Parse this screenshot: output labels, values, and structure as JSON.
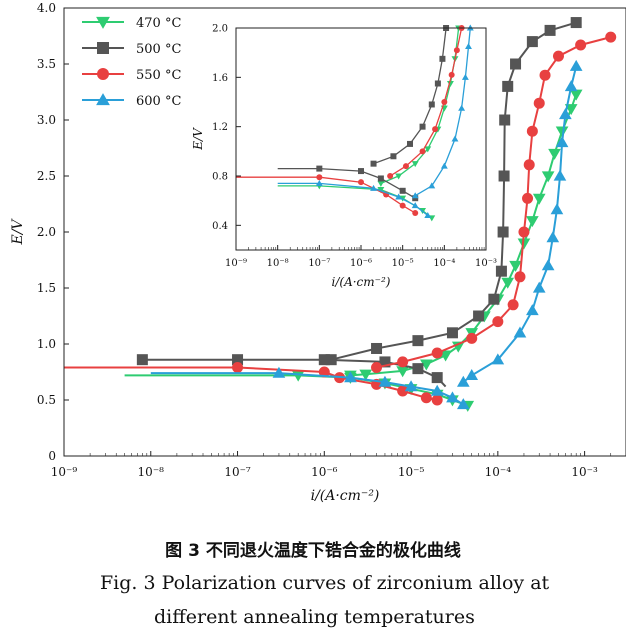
{
  "caption": {
    "cn": "图 3    不同退火温度下锆合金的极化曲线",
    "en_line1": "Fig. 3    Polarization curves of zirconium alloy at",
    "en_line2": "different annealing temperatures"
  },
  "chart_data": [
    {
      "type": "line",
      "xlabel": "i/(A·cm⁻²)",
      "ylabel": "E/V",
      "xscale": "log",
      "xlim": [
        1e-09,
        0.003
      ],
      "ylim": [
        0,
        4.0
      ],
      "x_ticks": [
        "10⁻⁹",
        "10⁻⁸",
        "10⁻⁷",
        "10⁻⁶",
        "10⁻⁵",
        "10⁻⁴",
        "10⁻³"
      ],
      "y_ticks": [
        "0",
        "0.5",
        "1.0",
        "1.5",
        "2.0",
        "2.5",
        "3.0",
        "3.5",
        "4.0"
      ],
      "grid": false,
      "legend": "top-left",
      "series": [
        {
          "name": "470 °C",
          "color": "#2ecc71",
          "marker": "triangle-down",
          "cathodic": [
            [
              4.5e-05,
              0.45
            ],
            [
              3e-05,
              0.5
            ],
            [
              2e-05,
              0.55
            ],
            [
              1e-05,
              0.6
            ],
            [
              5e-06,
              0.65
            ],
            [
              2e-06,
              0.7
            ],
            [
              5e-07,
              0.72
            ],
            [
              5e-09,
              0.72
            ]
          ],
          "anodic": [
            [
              2e-06,
              0.72
            ],
            [
              3e-06,
              0.73
            ],
            [
              8e-06,
              0.76
            ],
            [
              1.5e-05,
              0.82
            ],
            [
              2.5e-05,
              0.9
            ],
            [
              3.5e-05,
              0.98
            ],
            [
              5e-05,
              1.1
            ],
            [
              7e-05,
              1.25
            ],
            [
              0.0001,
              1.4
            ],
            [
              0.00013,
              1.55
            ],
            [
              0.00016,
              1.7
            ],
            [
              0.0002,
              1.9
            ],
            [
              0.00025,
              2.1
            ],
            [
              0.0003,
              2.3
            ],
            [
              0.00038,
              2.5
            ],
            [
              0.00045,
              2.7
            ],
            [
              0.00055,
              2.9
            ],
            [
              0.0007,
              3.1
            ],
            [
              0.0008,
              3.23
            ]
          ]
        },
        {
          "name": "500 °C",
          "color": "#555555",
          "marker": "square",
          "cathodic": [
            [
              8e-09,
              0.86
            ],
            [
              1e-07,
              0.86
            ],
            [
              1e-06,
              0.86
            ],
            [
              5e-06,
              0.84
            ],
            [
              1.2e-05,
              0.78
            ],
            [
              2e-05,
              0.7
            ],
            [
              2.5e-05,
              0.62
            ]
          ],
          "anodic": [
            [
              1.2e-06,
              0.86
            ],
            [
              4e-06,
              0.96
            ],
            [
              1.2e-05,
              1.03
            ],
            [
              3e-05,
              1.1
            ],
            [
              6e-05,
              1.25
            ],
            [
              9e-05,
              1.4
            ],
            [
              0.00011,
              1.65
            ],
            [
              0.000115,
              2.0
            ],
            [
              0.000118,
              2.5
            ],
            [
              0.00012,
              3.0
            ],
            [
              0.00013,
              3.3
            ],
            [
              0.00016,
              3.5
            ],
            [
              0.00025,
              3.7
            ],
            [
              0.0004,
              3.8
            ],
            [
              0.0008,
              3.87
            ]
          ]
        },
        {
          "name": "550 °C",
          "color": "#e84040",
          "marker": "circle",
          "cathodic": [
            [
              2e-05,
              0.5
            ],
            [
              1.5e-05,
              0.52
            ],
            [
              8e-06,
              0.58
            ],
            [
              4e-06,
              0.64
            ],
            [
              1.5e-06,
              0.7
            ],
            [
              1e-06,
              0.75
            ],
            [
              1e-07,
              0.79
            ],
            [
              1e-09,
              0.79
            ]
          ],
          "anodic": [
            [
              4e-06,
              0.79
            ],
            [
              8e-06,
              0.84
            ],
            [
              2e-05,
              0.92
            ],
            [
              5e-05,
              1.05
            ],
            [
              0.0001,
              1.2
            ],
            [
              0.00015,
              1.35
            ],
            [
              0.00018,
              1.6
            ],
            [
              0.0002,
              2.0
            ],
            [
              0.00022,
              2.3
            ],
            [
              0.00023,
              2.6
            ],
            [
              0.00025,
              2.9
            ],
            [
              0.0003,
              3.15
            ],
            [
              0.00035,
              3.4
            ],
            [
              0.0005,
              3.57
            ],
            [
              0.0009,
              3.67
            ],
            [
              0.002,
              3.74
            ]
          ]
        },
        {
          "name": "600 °C",
          "color": "#2a9fd8",
          "marker": "triangle-up",
          "cathodic": [
            [
              4e-05,
              0.46
            ],
            [
              3e-05,
              0.52
            ],
            [
              2e-05,
              0.58
            ],
            [
              1e-05,
              0.62
            ],
            [
              5e-06,
              0.66
            ],
            [
              2e-06,
              0.7
            ],
            [
              3e-07,
              0.74
            ],
            [
              1e-08,
              0.74
            ]
          ],
          "anodic": [
            [
              4e-05,
              0.66
            ],
            [
              5e-05,
              0.72
            ],
            [
              0.0001,
              0.86
            ],
            [
              0.00018,
              1.1
            ],
            [
              0.00025,
              1.3
            ],
            [
              0.0003,
              1.5
            ],
            [
              0.00038,
              1.7
            ],
            [
              0.00043,
              1.95
            ],
            [
              0.00048,
              2.2
            ],
            [
              0.00052,
              2.5
            ],
            [
              0.00055,
              2.8
            ],
            [
              0.0006,
              3.05
            ],
            [
              0.0007,
              3.3
            ],
            [
              0.0008,
              3.48
            ]
          ]
        }
      ]
    },
    {
      "type": "line",
      "xlabel": "i/(A·cm⁻²)",
      "ylabel": "E/V",
      "xscale": "log",
      "xlim": [
        1e-09,
        0.001
      ],
      "ylim": [
        0.2,
        2.0
      ],
      "x_ticks": [
        "10⁻⁹",
        "10⁻⁸",
        "10⁻⁷",
        "10⁻⁶",
        "10⁻⁵",
        "10⁻⁴",
        "10⁻³"
      ],
      "y_ticks": [
        "0.4",
        "0.8",
        "1.2",
        "1.6",
        "2.0"
      ],
      "grid": false,
      "series": [
        {
          "color": "#2ecc71",
          "marker": "triangle-down",
          "cathodic": [
            [
              5e-05,
              0.46
            ],
            [
              3e-05,
              0.52
            ],
            [
              1e-05,
              0.62
            ],
            [
              3e-06,
              0.69
            ],
            [
              1e-07,
              0.72
            ],
            [
              1e-08,
              0.72
            ]
          ],
          "anodic": [
            [
              3e-06,
              0.74
            ],
            [
              8e-06,
              0.8
            ],
            [
              2e-05,
              0.9
            ],
            [
              4e-05,
              1.02
            ],
            [
              7e-05,
              1.18
            ],
            [
              0.0001,
              1.35
            ],
            [
              0.00014,
              1.55
            ],
            [
              0.00018,
              1.75
            ],
            [
              0.00022,
              2.0
            ]
          ]
        },
        {
          "color": "#555555",
          "marker": "square",
          "cathodic": [
            [
              2e-05,
              0.62
            ],
            [
              1e-05,
              0.68
            ],
            [
              3e-06,
              0.78
            ],
            [
              1e-06,
              0.84
            ],
            [
              1e-07,
              0.86
            ],
            [
              1e-08,
              0.86
            ]
          ],
          "anodic": [
            [
              2e-06,
              0.9
            ],
            [
              6e-06,
              0.96
            ],
            [
              1.5e-05,
              1.06
            ],
            [
              3e-05,
              1.2
            ],
            [
              5e-05,
              1.38
            ],
            [
              7e-05,
              1.55
            ],
            [
              9e-05,
              1.75
            ],
            [
              0.00011,
              2.0
            ]
          ]
        },
        {
          "color": "#e84040",
          "marker": "circle",
          "cathodic": [
            [
              2e-05,
              0.5
            ],
            [
              1e-05,
              0.56
            ],
            [
              4e-06,
              0.65
            ],
            [
              1e-06,
              0.75
            ],
            [
              1e-07,
              0.79
            ],
            [
              1e-09,
              0.79
            ]
          ],
          "anodic": [
            [
              5e-06,
              0.8
            ],
            [
              1.2e-05,
              0.88
            ],
            [
              3e-05,
              1.0
            ],
            [
              6e-05,
              1.18
            ],
            [
              0.0001,
              1.4
            ],
            [
              0.00015,
              1.62
            ],
            [
              0.0002,
              1.82
            ],
            [
              0.00026,
              2.0
            ]
          ]
        },
        {
          "color": "#2a9fd8",
          "marker": "triangle-up",
          "cathodic": [
            [
              4e-05,
              0.48
            ],
            [
              2e-05,
              0.56
            ],
            [
              8e-06,
              0.63
            ],
            [
              2e-06,
              0.7
            ],
            [
              1e-07,
              0.74
            ],
            [
              1e-08,
              0.74
            ]
          ],
          "anodic": [
            [
              2e-05,
              0.64
            ],
            [
              5e-05,
              0.72
            ],
            [
              0.0001,
              0.88
            ],
            [
              0.00018,
              1.1
            ],
            [
              0.00026,
              1.35
            ],
            [
              0.00032,
              1.6
            ],
            [
              0.00038,
              1.85
            ],
            [
              0.00042,
              2.0
            ]
          ]
        }
      ]
    }
  ]
}
